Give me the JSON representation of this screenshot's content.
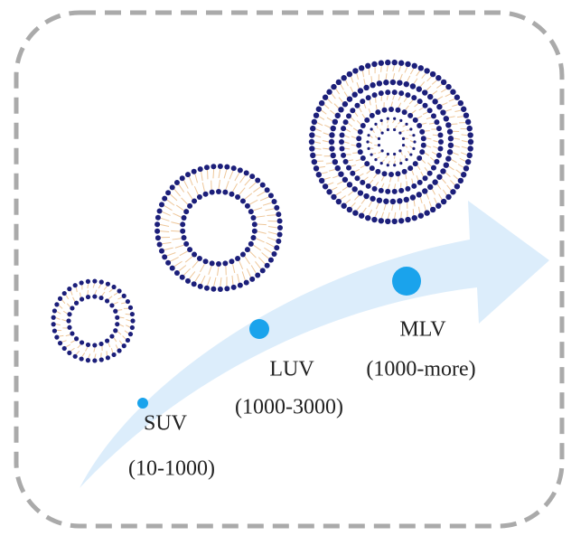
{
  "nodes": [
    {
      "label": "SUV",
      "range": "(10-1000)"
    },
    {
      "label": "LUV",
      "range": "(1000-3000)"
    },
    {
      "label": "MLV",
      "range": "(1000-more)"
    }
  ]
}
